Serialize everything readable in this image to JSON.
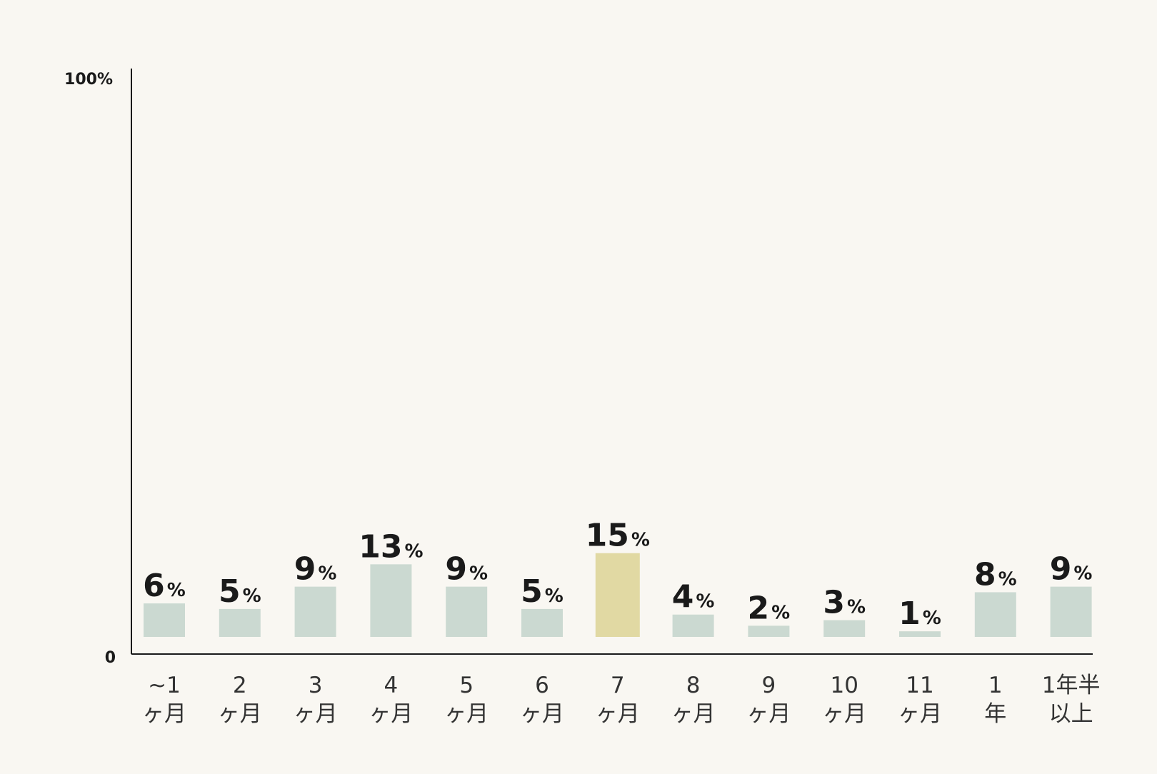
{
  "chart_data": {
    "type": "bar",
    "categories": [
      [
        "~1",
        "ヶ月"
      ],
      [
        "2",
        "ヶ月"
      ],
      [
        "3",
        "ヶ月"
      ],
      [
        "4",
        "ヶ月"
      ],
      [
        "5",
        "ヶ月"
      ],
      [
        "6",
        "ヶ月"
      ],
      [
        "7",
        "ヶ月"
      ],
      [
        "8",
        "ヶ月"
      ],
      [
        "9",
        "ヶ月"
      ],
      [
        "10",
        "ヶ月"
      ],
      [
        "11",
        "ヶ月"
      ],
      [
        "1",
        "年"
      ],
      [
        "1年半",
        "以上"
      ]
    ],
    "values": [
      6,
      5,
      9,
      13,
      9,
      5,
      15,
      4,
      2,
      3,
      1,
      8,
      9
    ],
    "value_labels": [
      "6",
      "5",
      "9",
      "13",
      "9",
      "5",
      "15",
      "4",
      "2",
      "3",
      "1",
      "8",
      "9"
    ],
    "value_unit": "%",
    "highlight_index": 6,
    "ylim": [
      0,
      100
    ],
    "y_tick_labels": {
      "top": "100%",
      "bottom": "0"
    },
    "grid": false,
    "colors": {
      "background": "#f9f7f2",
      "bar": "#cbd9d1",
      "highlight": "#e1d9a3",
      "axis": "#1a1a1a",
      "text": "#1a1a1a",
      "category_text": "#333333"
    }
  }
}
